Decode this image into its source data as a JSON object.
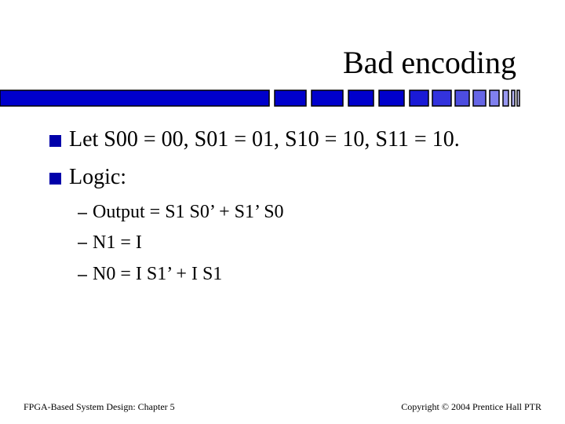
{
  "header": {
    "title": "Bad encoding"
  },
  "bullets": [
    {
      "text": "Let S00 = 00, S01 = 01, S10 = 10, S11 = 10."
    },
    {
      "text": "Logic:",
      "sub_bullets": [
        "Output = S1 S0’ + S1’ S0",
        "N1 = I",
        "N0 = I S1’ + I S1"
      ]
    }
  ],
  "footer": {
    "left": "FPGA-Based System Design: Chapter 5",
    "right": "Copyright © 2004 Prentice Hall PTR"
  }
}
